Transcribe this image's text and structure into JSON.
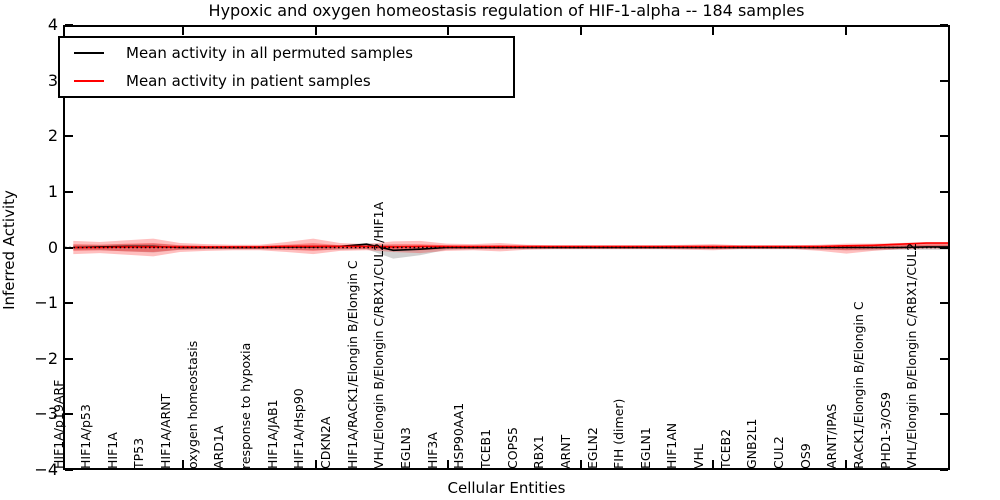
{
  "title": "Hypoxic and oxygen homeostasis regulation of HIF-1-alpha -- 184 samples",
  "legend": {
    "items": [
      {
        "label": "Mean activity in all permuted samples",
        "color": "#000000"
      },
      {
        "label": "Mean activity in patient samples",
        "color": "#ff0000"
      }
    ]
  },
  "axes": {
    "ylabel": "Inferred Activity",
    "xlabel": "Cellular Entities",
    "yticks": [
      4,
      3,
      2,
      1,
      0,
      -1,
      -2,
      -3,
      -4
    ],
    "ylim": [
      -4,
      4
    ]
  },
  "chart_data": {
    "type": "line",
    "title": "Hypoxic and oxygen homeostasis regulation of HIF-1-alpha -- 184 samples",
    "xlabel": "Cellular Entities",
    "ylabel": "Inferred Activity",
    "ylim": [
      -4,
      4
    ],
    "grid": false,
    "legend_position": "upper left",
    "zero_line": {
      "style": "dotted",
      "color": "#000000",
      "y": 0
    },
    "categories": [
      "HIF1A/p19ARF",
      "HIF1A/p53",
      "HIF1A",
      "TP53",
      "HIF1A/ARNT",
      "oxygen homeostasis",
      "ARD1A",
      "response to hypoxia",
      "HIF1A/JAB1",
      "HIF1A/Hsp90",
      "CDKN2A",
      "HIF1A/RACK1/Elongin B/Elongin C",
      "VHL/Elongin B/Elongin C/RBX1/CUL2/HIF1A",
      "EGLN3",
      "HIF3A",
      "HSP90AA1",
      "TCEB1",
      "COPS5",
      "RBX1",
      "ARNT",
      "EGLN2",
      "FIH (dimer)",
      "EGLN1",
      "HIF1AN",
      "VHL",
      "TCEB2",
      "GNB2L1",
      "CUL2",
      "OS9",
      "ARNT/IPAS",
      "RACK1/Elongin B/Elongin C",
      "PHD1-3/OS9",
      "VHL/Elongin B/Elongin C/RBX1/CUL2"
    ],
    "series": [
      {
        "name": "Mean activity in all permuted samples",
        "color": "#000000",
        "values": [
          0.0,
          0.01,
          0.02,
          0.02,
          0.0,
          0.0,
          0.0,
          0.0,
          0.01,
          0.01,
          0.02,
          0.06,
          -0.05,
          -0.03,
          0.0,
          0.0,
          0.0,
          0.0,
          0.0,
          0.0,
          0.0,
          0.0,
          0.0,
          0.0,
          0.0,
          0.0,
          0.0,
          0.0,
          0.0,
          0.0,
          0.0,
          0.0,
          0.01
        ]
      },
      {
        "name": "Mean activity in patient samples",
        "color": "#ff0000",
        "values": [
          0.0,
          0.0,
          0.01,
          0.01,
          0.01,
          0.01,
          0.01,
          0.01,
          0.02,
          0.02,
          0.02,
          0.02,
          0.01,
          0.02,
          0.02,
          0.02,
          0.02,
          0.02,
          0.02,
          0.02,
          0.02,
          0.02,
          0.02,
          0.02,
          0.02,
          0.02,
          0.02,
          0.02,
          0.02,
          0.03,
          0.04,
          0.06,
          0.08
        ]
      }
    ],
    "bands": [
      {
        "name": "permuted-samples-range",
        "color": "rgba(0,0,0,0.18)",
        "hi": [
          0.05,
          0.05,
          0.06,
          0.07,
          0.04,
          0.03,
          0.03,
          0.03,
          0.04,
          0.05,
          0.04,
          0.08,
          0.04,
          0.03,
          0.03,
          0.03,
          0.03,
          0.03,
          0.03,
          0.03,
          0.03,
          0.03,
          0.03,
          0.03,
          0.03,
          0.03,
          0.03,
          0.03,
          0.03,
          0.04,
          0.04,
          0.04,
          0.05
        ],
        "lo": [
          -0.05,
          -0.05,
          -0.07,
          -0.09,
          -0.04,
          -0.03,
          -0.03,
          -0.03,
          -0.04,
          -0.05,
          -0.04,
          -0.03,
          -0.2,
          -0.14,
          -0.04,
          -0.03,
          -0.03,
          -0.03,
          -0.03,
          -0.03,
          -0.03,
          -0.03,
          -0.03,
          -0.03,
          -0.03,
          -0.03,
          -0.03,
          -0.03,
          -0.04,
          -0.05,
          -0.05,
          -0.04,
          -0.04
        ]
      },
      {
        "name": "patient-samples-range-outer",
        "color": "rgba(255,0,0,0.25)",
        "hi": [
          0.12,
          0.1,
          0.13,
          0.16,
          0.08,
          0.06,
          0.05,
          0.05,
          0.1,
          0.16,
          0.08,
          0.06,
          0.11,
          0.12,
          0.07,
          0.06,
          0.08,
          0.05,
          0.04,
          0.04,
          0.04,
          0.04,
          0.04,
          0.05,
          0.06,
          0.04,
          0.04,
          0.04,
          0.05,
          0.07,
          0.07,
          0.08,
          0.1
        ],
        "lo": [
          -0.12,
          -0.1,
          -0.13,
          -0.16,
          -0.08,
          -0.06,
          -0.05,
          -0.05,
          -0.08,
          -0.12,
          -0.06,
          -0.05,
          -0.08,
          -0.1,
          -0.06,
          -0.05,
          -0.07,
          -0.04,
          -0.03,
          -0.03,
          -0.03,
          -0.03,
          -0.03,
          -0.04,
          -0.05,
          -0.03,
          -0.03,
          -0.03,
          -0.06,
          -0.11,
          -0.06,
          -0.03,
          -0.02
        ]
      },
      {
        "name": "patient-samples-range-inner",
        "color": "rgba(255,0,0,0.30)",
        "hi": [
          0.06,
          0.05,
          0.07,
          0.08,
          0.04,
          0.03,
          0.03,
          0.03,
          0.05,
          0.08,
          0.04,
          0.03,
          0.06,
          0.06,
          0.04,
          0.03,
          0.04,
          0.03,
          0.02,
          0.02,
          0.02,
          0.02,
          0.02,
          0.03,
          0.03,
          0.02,
          0.02,
          0.02,
          0.03,
          0.04,
          0.04,
          0.05,
          0.06
        ],
        "lo": [
          -0.06,
          -0.05,
          -0.07,
          -0.08,
          -0.04,
          -0.03,
          -0.03,
          -0.03,
          -0.04,
          -0.06,
          -0.03,
          -0.03,
          -0.04,
          -0.05,
          -0.03,
          -0.03,
          -0.03,
          -0.02,
          -0.02,
          -0.02,
          -0.02,
          -0.02,
          -0.02,
          -0.02,
          -0.03,
          -0.02,
          -0.02,
          -0.02,
          -0.03,
          -0.05,
          -0.03,
          -0.02,
          -0.01
        ]
      }
    ]
  }
}
